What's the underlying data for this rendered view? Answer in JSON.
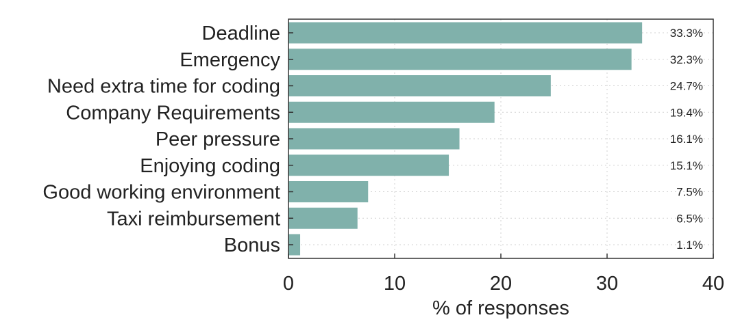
{
  "chart_data": {
    "type": "bar",
    "orientation": "horizontal",
    "categories": [
      "Deadline",
      "Emergency",
      "Need extra time for coding",
      "Company Requirements",
      "Peer pressure",
      "Enjoying coding",
      "Good working environment",
      "Taxi reimbursement",
      "Bonus"
    ],
    "values": [
      33.3,
      32.3,
      24.7,
      19.4,
      16.1,
      15.1,
      7.5,
      6.5,
      1.1
    ],
    "value_labels": [
      "33.3%",
      "32.3%",
      "24.7%",
      "19.4%",
      "16.1%",
      "15.1%",
      "7.5%",
      "6.5%",
      "1.1%"
    ],
    "title": "",
    "xlabel": "% of responses",
    "ylabel": "",
    "xlim": [
      0,
      40
    ],
    "xticks": [
      "0",
      "10",
      "20",
      "30",
      "40"
    ],
    "grid": true,
    "bar_color": "#80b1ab"
  }
}
